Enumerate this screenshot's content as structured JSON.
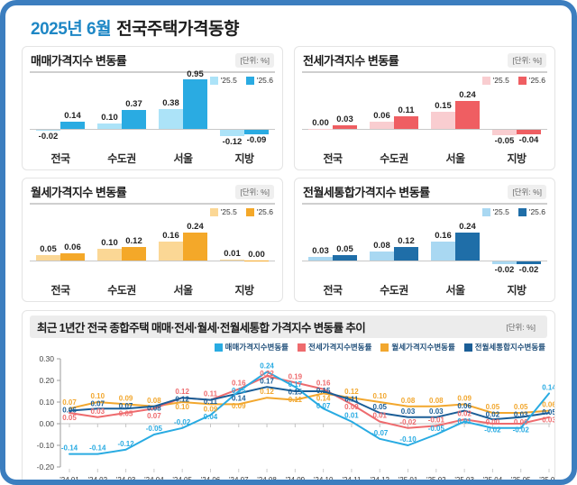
{
  "page": {
    "title_month": "2025년 6월",
    "title_main": "전국주택가격동향"
  },
  "chart_data": [
    {
      "type": "bar",
      "id": "sale",
      "title": "매매가격지수 변동률",
      "unit": "[단위: %]",
      "categories": [
        "전국",
        "수도권",
        "서울",
        "지방"
      ],
      "series": [
        {
          "name": "'25.5",
          "color": "#ace3f8",
          "values": [
            -0.02,
            0.1,
            0.38,
            -0.12
          ]
        },
        {
          "name": "'25.6",
          "color": "#2aabe2",
          "values": [
            0.14,
            0.37,
            0.95,
            -0.09
          ]
        }
      ],
      "ylim": [
        -0.2,
        1.0
      ],
      "legend_position": "top-right"
    },
    {
      "type": "bar",
      "id": "jeonse",
      "title": "전세가격지수 변동률",
      "unit": "[단위: %]",
      "categories": [
        "전국",
        "수도권",
        "서울",
        "지방"
      ],
      "series": [
        {
          "name": "'25.5",
          "color": "#f9cdd0",
          "values": [
            0.0,
            0.06,
            0.15,
            -0.05
          ]
        },
        {
          "name": "'25.6",
          "color": "#ef5e62",
          "values": [
            0.03,
            0.11,
            0.24,
            -0.04
          ]
        }
      ],
      "ylim": [
        -0.2,
        0.45
      ],
      "legend_position": "top-right"
    },
    {
      "type": "bar",
      "id": "wolse",
      "title": "월세가격지수 변동률",
      "unit": "[단위: %]",
      "categories": [
        "전국",
        "수도권",
        "서울",
        "지방"
      ],
      "series": [
        {
          "name": "'25.5",
          "color": "#fbd795",
          "values": [
            0.05,
            0.1,
            0.16,
            0.01
          ]
        },
        {
          "name": "'25.6",
          "color": "#f4a829",
          "values": [
            0.06,
            0.12,
            0.24,
            0.0
          ]
        }
      ],
      "ylim": [
        -0.2,
        0.45
      ],
      "legend_position": "top-right"
    },
    {
      "type": "bar",
      "id": "combined",
      "title": "전월세통합가격지수 변동률",
      "unit": "[단위: %]",
      "categories": [
        "전국",
        "수도권",
        "서울",
        "지방"
      ],
      "series": [
        {
          "name": "'25.5",
          "color": "#a9d8f2",
          "values": [
            0.03,
            0.08,
            0.16,
            -0.02
          ]
        },
        {
          "name": "'25.6",
          "color": "#1f6ea8",
          "values": [
            0.05,
            0.12,
            0.24,
            -0.02
          ]
        }
      ],
      "ylim": [
        -0.2,
        0.45
      ],
      "legend_position": "top-right"
    },
    {
      "type": "line",
      "id": "trend",
      "title": "최근 1년간 전국 종합주택 매매·전세·월세·전월세통합 가격지수 변동률 추이",
      "unit": "[단위: %]",
      "x": [
        "'24.01",
        "'24.02",
        "'24.03",
        "'24.04",
        "'24.05",
        "'24.06",
        "'24.07",
        "'24.08",
        "'24.09",
        "'24.10",
        "'24.11",
        "'24.12",
        "'25.01",
        "'25.02",
        "'25.03",
        "'25.04",
        "'25.05",
        "'25.06"
      ],
      "yticks": [
        0.3,
        0.2,
        0.1,
        0.0,
        -0.1,
        -0.2
      ],
      "ylim": [
        -0.2,
        0.3
      ],
      "grid": "zero-line-only",
      "legend_position": "top-right",
      "series": [
        {
          "name": "매매가격지수변동률",
          "color": "#29abe2",
          "values": [
            -0.14,
            -0.14,
            -0.12,
            -0.05,
            -0.02,
            0.04,
            0.15,
            0.24,
            0.17,
            0.07,
            0.01,
            -0.07,
            -0.1,
            -0.05,
            0.01,
            -0.02,
            -0.02,
            0.14
          ]
        },
        {
          "name": "전세가격지수변동률",
          "color": "#ee6b6e",
          "values": [
            0.05,
            0.03,
            0.05,
            0.07,
            0.12,
            0.11,
            0.16,
            0.22,
            0.19,
            0.16,
            0.09,
            0.01,
            -0.02,
            -0.01,
            0.02,
            0.0,
            0.0,
            0.03
          ]
        },
        {
          "name": "월세가격지수변동률",
          "color": "#f2a72e",
          "values": [
            0.07,
            0.1,
            0.09,
            0.08,
            0.1,
            0.09,
            0.09,
            0.12,
            0.11,
            0.14,
            0.12,
            0.1,
            0.08,
            0.08,
            0.09,
            0.05,
            0.05,
            0.06
          ]
        },
        {
          "name": "전월세통합지수변동률",
          "color": "#1b5e97",
          "values": [
            0.06,
            0.07,
            0.07,
            0.08,
            0.12,
            0.11,
            0.14,
            0.17,
            0.15,
            0.15,
            0.11,
            0.05,
            0.03,
            0.03,
            0.06,
            0.02,
            0.03,
            0.05
          ]
        }
      ]
    }
  ]
}
